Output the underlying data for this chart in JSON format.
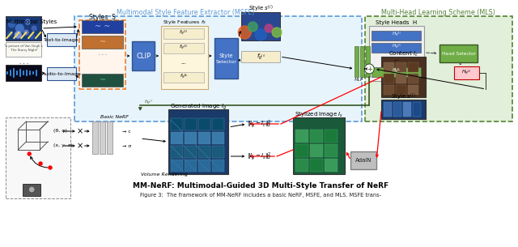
{
  "title": "MM-NeRF: Multimodal-Guided 3D Multi-Style Transfer of NeRF",
  "caption": "Figure 3:  The framework of MM-NeRF includes a basic NeRF, MSFE, and MLS. MSFE trans-",
  "msfe_label": "Multimodal Style Feature Extractor (MSFE)",
  "mls_label": "Multi-Head Learning Scheme (MLS)",
  "bg": "#ffffff",
  "msfe_ec": "#5b9bd5",
  "mls_ec": "#548235",
  "msfe_fc": "#e8f4fb",
  "mls_fc": "#e2efda",
  "blue_fc": "#4472c4",
  "blue_ec": "#2f528f",
  "green_fc": "#70ad47",
  "green_ec": "#375623",
  "orange_ec": "#ed7d31",
  "orange_fc": "#fce4d6",
  "tan_fc": "#fff2cc",
  "tan_ec": "#bf9000",
  "gray_fc": "#bfbfbf",
  "gray_ec": "#7f7f7f",
  "pink_fc": "#ffc7ce",
  "pink_ec": "#c00000",
  "red": "#ff0000",
  "dark_red": "#c00000"
}
